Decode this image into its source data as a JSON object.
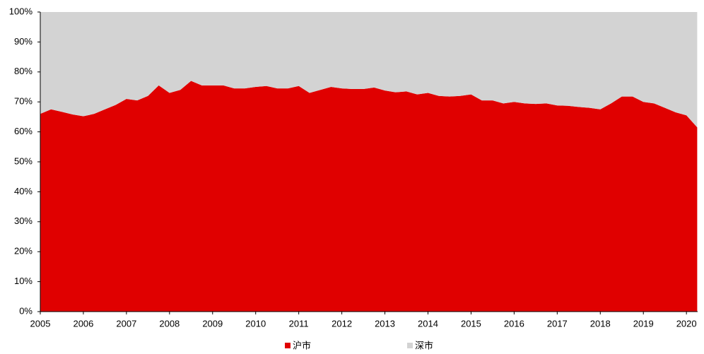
{
  "chart_data": {
    "type": "stacked-area",
    "x": [
      2005.0,
      2005.25,
      2005.5,
      2005.75,
      2006.0,
      2006.25,
      2006.5,
      2006.75,
      2007.0,
      2007.25,
      2007.5,
      2007.75,
      2008.0,
      2008.25,
      2008.5,
      2008.75,
      2009.0,
      2009.25,
      2009.5,
      2009.75,
      2010.0,
      2010.25,
      2010.5,
      2010.75,
      2011.0,
      2011.25,
      2011.5,
      2011.75,
      2012.0,
      2012.25,
      2012.5,
      2012.75,
      2013.0,
      2013.25,
      2013.5,
      2013.75,
      2014.0,
      2014.25,
      2014.5,
      2014.75,
      2015.0,
      2015.25,
      2015.5,
      2015.75,
      2016.0,
      2016.25,
      2016.5,
      2016.75,
      2017.0,
      2017.25,
      2017.5,
      2017.75,
      2018.0,
      2018.25,
      2018.5,
      2018.75,
      2019.0,
      2019.25,
      2019.5,
      2019.75,
      2020.0,
      2020.25
    ],
    "series": [
      {
        "name": "沪市",
        "color": "#e00000",
        "values": [
          66,
          67.5,
          66.7,
          65.8,
          65.2,
          66,
          67.5,
          69,
          71,
          70.5,
          72,
          75.5,
          73,
          74,
          77,
          75.5,
          75.5,
          75.5,
          74.5,
          74.5,
          75,
          75.3,
          74.5,
          74.5,
          75.3,
          73,
          74,
          75,
          74.5,
          74.3,
          74.3,
          74.8,
          73.8,
          73.2,
          73.5,
          72.5,
          73,
          72,
          71.8,
          72,
          72.5,
          70.5,
          70.5,
          69.5,
          70,
          69.5,
          69.3,
          69.5,
          68.8,
          68.7,
          68.3,
          68,
          67.5,
          69.5,
          71.8,
          71.8,
          70,
          69.5,
          68,
          66.5,
          65.5,
          61.5
        ]
      },
      {
        "name": "深市",
        "color": "#d3d3d3",
        "values": [
          34,
          32.5,
          33.3,
          34.2,
          34.8,
          34,
          32.5,
          31,
          29,
          29.5,
          28,
          24.5,
          27,
          26,
          23,
          24.5,
          24.5,
          24.5,
          25.5,
          25.5,
          25,
          24.7,
          25.5,
          25.5,
          24.7,
          27,
          26,
          25,
          25.5,
          25.7,
          25.7,
          25.2,
          26.2,
          26.8,
          26.5,
          27.5,
          27,
          28,
          28.2,
          28,
          27.5,
          29.5,
          29.5,
          30.5,
          30,
          30.5,
          30.7,
          30.5,
          31.2,
          31.3,
          31.7,
          32,
          32.5,
          30.5,
          28.2,
          28.2,
          30,
          30.5,
          32,
          33.5,
          34.5,
          38.5
        ]
      }
    ],
    "xlim": [
      2005,
      2020.26
    ],
    "xticks": [
      2005,
      2006,
      2007,
      2008,
      2009,
      2010,
      2011,
      2012,
      2013,
      2014,
      2015,
      2016,
      2017,
      2018,
      2019,
      2020
    ],
    "ylim": [
      0,
      100
    ],
    "yticks": [
      {
        "value": 0,
        "label": "0%"
      },
      {
        "value": 10,
        "label": "10%"
      },
      {
        "value": 20,
        "label": "20%"
      },
      {
        "value": 30,
        "label": "30%"
      },
      {
        "value": 40,
        "label": "40%"
      },
      {
        "value": 50,
        "label": "50%"
      },
      {
        "value": 60,
        "label": "60%"
      },
      {
        "value": 70,
        "label": "70%"
      },
      {
        "value": 80,
        "label": "80%"
      },
      {
        "value": 90,
        "label": "90%"
      },
      {
        "value": 100,
        "label": "100%"
      }
    ]
  }
}
